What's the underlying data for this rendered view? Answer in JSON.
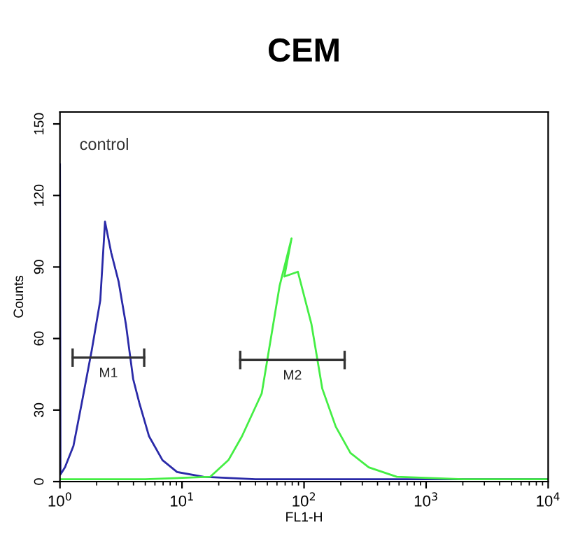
{
  "chart_data": {
    "type": "line",
    "title": "CEM",
    "xlabel": "FL1-H",
    "ylabel": "Counts",
    "log": "x",
    "xlim": [
      1,
      10000
    ],
    "xticks": [
      {
        "value": 1,
        "label": "10$^{0}$"
      },
      {
        "value": 10,
        "label": "10$^{1}$"
      },
      {
        "value": 100,
        "label": "10$^{2}$"
      },
      {
        "value": 1000,
        "label": "10$^{3}$"
      },
      {
        "value": 10000,
        "label": "10$^{4}$"
      }
    ],
    "ylim": [
      0,
      155
    ],
    "yticks": [
      0,
      30,
      60,
      90,
      120,
      150
    ],
    "grid": false,
    "marker": "none",
    "line_style": "solid",
    "series": [
      {
        "color": "#2a2aa8",
        "x": [
          1.0,
          1.01,
          1.1,
          1.29,
          1.51,
          1.82,
          2.14,
          2.34,
          2.63,
          3.02,
          3.47,
          3.98,
          4.47,
          5.37,
          6.92,
          9.12,
          15,
          40,
          200,
          1000,
          10000
        ],
        "values": [
          133,
          3,
          6,
          15,
          33,
          55,
          76,
          109,
          96,
          84,
          66,
          43,
          33,
          19,
          9,
          4,
          2,
          1,
          1,
          1,
          1
        ]
      },
      {
        "color": "#44ee44",
        "x": [
          1.0,
          5,
          17,
          24,
          31,
          45,
          63,
          79,
          69,
          89,
          115,
          141,
          182,
          240,
          339,
          575,
          2000,
          10000
        ],
        "values": [
          1,
          1,
          2,
          9,
          19,
          37,
          82,
          102,
          86,
          88,
          66,
          39,
          23,
          12,
          6,
          2,
          1,
          1
        ]
      },
      {
        "color": "#333333",
        "x": [
          1.27,
          4.9
        ],
        "values": [
          52,
          52
        ]
      },
      {
        "color": "#333333",
        "x": [
          30,
          215
        ],
        "values": [
          51,
          51
        ]
      }
    ],
    "annotations": [
      "control",
      "M1",
      "M2"
    ]
  }
}
